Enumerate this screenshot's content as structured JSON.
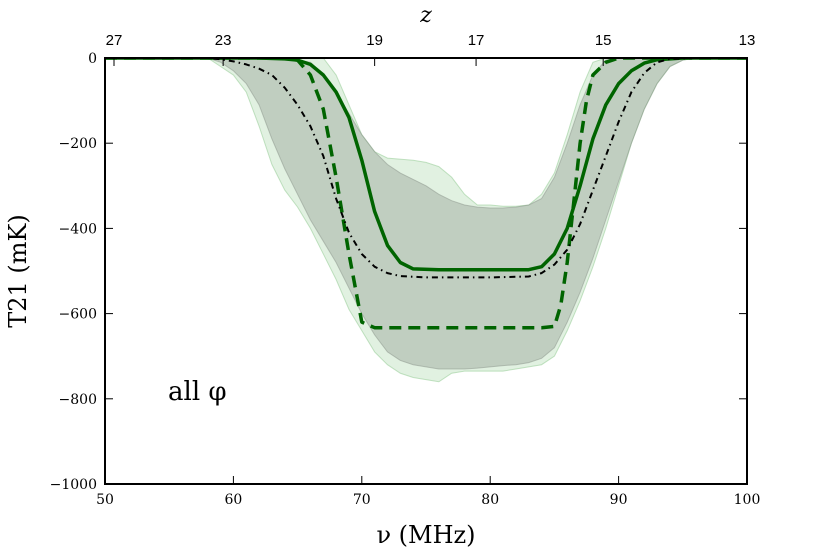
{
  "chart_data": {
    "type": "line",
    "xlabel": "ν (MHz)",
    "ylabel": "T21 (mK)",
    "top_xlabel": "z",
    "xlim": [
      50,
      100
    ],
    "ylim": [
      -1000,
      0
    ],
    "x_ticks": [
      "50",
      "60",
      "70",
      "80",
      "90",
      "100"
    ],
    "y_ticks": [
      "0",
      "−200",
      "−400",
      "−600",
      "−800",
      "−1000"
    ],
    "top_ticks": [
      {
        "label": "27",
        "nu": 50.7
      },
      {
        "label": "23",
        "nu": 59.2
      },
      {
        "label": "19",
        "nu": 71.0
      },
      {
        "label": "17",
        "nu": 78.9
      },
      {
        "label": "15",
        "nu": 88.8
      },
      {
        "label": "13",
        "nu": 101.4
      }
    ],
    "annotation": "all φ",
    "colors": {
      "series": "#006400",
      "dotted": "#000000",
      "band_outer": "#a8d8a8",
      "band_inner": "#9aa59a"
    },
    "bands": [
      {
        "style": "outer",
        "upper": [
          [
            50,
            0
          ],
          [
            58,
            0
          ],
          [
            62,
            0
          ],
          [
            64,
            0
          ],
          [
            66,
            0
          ],
          [
            67,
            0
          ],
          [
            68,
            -40
          ],
          [
            69,
            -110
          ],
          [
            70,
            -180
          ],
          [
            71,
            -220
          ],
          [
            72,
            -235
          ],
          [
            74,
            -240
          ],
          [
            75,
            -245
          ],
          [
            76,
            -255
          ],
          [
            77,
            -280
          ],
          [
            78,
            -320
          ],
          [
            79,
            -345
          ],
          [
            80,
            -345
          ],
          [
            81,
            -348
          ],
          [
            82,
            -348
          ],
          [
            83,
            -345
          ],
          [
            84,
            -320
          ],
          [
            85,
            -270
          ],
          [
            86,
            -180
          ],
          [
            87,
            -80
          ],
          [
            88,
            -10
          ],
          [
            89,
            0
          ],
          [
            100,
            0
          ]
        ],
        "lower": [
          [
            50,
            0
          ],
          [
            58,
            0
          ],
          [
            59,
            -20
          ],
          [
            60,
            -40
          ],
          [
            61,
            -80
          ],
          [
            62,
            -160
          ],
          [
            63,
            -250
          ],
          [
            64,
            -310
          ],
          [
            65,
            -350
          ],
          [
            66,
            -400
          ],
          [
            67,
            -460
          ],
          [
            68,
            -520
          ],
          [
            69,
            -590
          ],
          [
            70,
            -640
          ],
          [
            71,
            -690
          ],
          [
            72,
            -720
          ],
          [
            73,
            -740
          ],
          [
            74,
            -750
          ],
          [
            75,
            -755
          ],
          [
            76,
            -760
          ],
          [
            77,
            -740
          ],
          [
            78,
            -735
          ],
          [
            79,
            -735
          ],
          [
            80,
            -735
          ],
          [
            81,
            -735
          ],
          [
            82,
            -730
          ],
          [
            83,
            -725
          ],
          [
            84,
            -720
          ],
          [
            85,
            -700
          ],
          [
            86,
            -640
          ],
          [
            87,
            -570
          ],
          [
            88,
            -490
          ],
          [
            89,
            -400
          ],
          [
            90,
            -300
          ],
          [
            91,
            -200
          ],
          [
            92,
            -120
          ],
          [
            93,
            -60
          ],
          [
            94,
            -20
          ],
          [
            95,
            -5
          ],
          [
            96,
            0
          ],
          [
            100,
            0
          ]
        ]
      },
      {
        "style": "inner",
        "upper": [
          [
            50,
            0
          ],
          [
            64,
            0
          ],
          [
            66,
            -10
          ],
          [
            67,
            -40
          ],
          [
            68,
            -80
          ],
          [
            69,
            -130
          ],
          [
            70,
            -180
          ],
          [
            71,
            -220
          ],
          [
            72,
            -250
          ],
          [
            73,
            -270
          ],
          [
            74,
            -285
          ],
          [
            75,
            -300
          ],
          [
            76,
            -320
          ],
          [
            77,
            -335
          ],
          [
            78,
            -345
          ],
          [
            79,
            -350
          ],
          [
            80,
            -352
          ],
          [
            81,
            -352
          ],
          [
            82,
            -350
          ],
          [
            83,
            -345
          ],
          [
            84,
            -330
          ],
          [
            85,
            -280
          ],
          [
            86,
            -200
          ],
          [
            87,
            -110
          ],
          [
            88,
            -40
          ],
          [
            89,
            -5
          ],
          [
            90,
            0
          ],
          [
            100,
            0
          ]
        ],
        "lower": [
          [
            50,
            0
          ],
          [
            58,
            0
          ],
          [
            59,
            -10
          ],
          [
            60,
            -30
          ],
          [
            61,
            -60
          ],
          [
            62,
            -110
          ],
          [
            63,
            -190
          ],
          [
            64,
            -260
          ],
          [
            65,
            -320
          ],
          [
            66,
            -380
          ],
          [
            67,
            -430
          ],
          [
            68,
            -480
          ],
          [
            69,
            -540
          ],
          [
            70,
            -600
          ],
          [
            71,
            -650
          ],
          [
            72,
            -690
          ],
          [
            73,
            -710
          ],
          [
            74,
            -720
          ],
          [
            75,
            -725
          ],
          [
            76,
            -730
          ],
          [
            77,
            -730
          ],
          [
            78,
            -730
          ],
          [
            79,
            -728
          ],
          [
            80,
            -725
          ],
          [
            81,
            -722
          ],
          [
            82,
            -720
          ],
          [
            83,
            -715
          ],
          [
            84,
            -705
          ],
          [
            85,
            -680
          ],
          [
            86,
            -620
          ],
          [
            87,
            -550
          ],
          [
            88,
            -470
          ],
          [
            89,
            -380
          ],
          [
            90,
            -290
          ],
          [
            91,
            -200
          ],
          [
            92,
            -120
          ],
          [
            93,
            -60
          ],
          [
            94,
            -20
          ],
          [
            95,
            -5
          ],
          [
            96,
            0
          ],
          [
            100,
            0
          ]
        ]
      }
    ],
    "series": [
      {
        "style": "solid",
        "points": [
          [
            50,
            0
          ],
          [
            62,
            0
          ],
          [
            64,
            -2
          ],
          [
            65,
            -5
          ],
          [
            66,
            -15
          ],
          [
            67,
            -40
          ],
          [
            68,
            -80
          ],
          [
            69,
            -140
          ],
          [
            70,
            -240
          ],
          [
            71,
            -360
          ],
          [
            72,
            -440
          ],
          [
            73,
            -480
          ],
          [
            74,
            -495
          ],
          [
            76,
            -497
          ],
          [
            80,
            -497
          ],
          [
            83,
            -497
          ],
          [
            84,
            -490
          ],
          [
            85,
            -460
          ],
          [
            86,
            -400
          ],
          [
            87,
            -300
          ],
          [
            88,
            -190
          ],
          [
            89,
            -110
          ],
          [
            90,
            -60
          ],
          [
            91,
            -30
          ],
          [
            92,
            -12
          ],
          [
            93,
            -4
          ],
          [
            95,
            0
          ],
          [
            100,
            0
          ]
        ]
      },
      {
        "style": "dashed",
        "points": [
          [
            50,
            0
          ],
          [
            64,
            0
          ],
          [
            65,
            -5
          ],
          [
            66,
            -40
          ],
          [
            67,
            -120
          ],
          [
            68,
            -280
          ],
          [
            69,
            -460
          ],
          [
            70,
            -620
          ],
          [
            71,
            -633
          ],
          [
            75,
            -633
          ],
          [
            80,
            -633
          ],
          [
            84,
            -633
          ],
          [
            85,
            -630
          ],
          [
            85.5,
            -580
          ],
          [
            86,
            -480
          ],
          [
            86.5,
            -340
          ],
          [
            87,
            -200
          ],
          [
            87.5,
            -100
          ],
          [
            88,
            -40
          ],
          [
            89,
            -10
          ],
          [
            90,
            0
          ],
          [
            100,
            0
          ]
        ]
      },
      {
        "style": "dashdot",
        "points": [
          [
            50,
            0
          ],
          [
            58,
            0
          ],
          [
            59,
            -3
          ],
          [
            60,
            -8
          ],
          [
            61,
            -15
          ],
          [
            62,
            -25
          ],
          [
            63,
            -40
          ],
          [
            64,
            -70
          ],
          [
            65,
            -110
          ],
          [
            66,
            -160
          ],
          [
            67,
            -230
          ],
          [
            68,
            -330
          ],
          [
            69,
            -410
          ],
          [
            70,
            -460
          ],
          [
            71,
            -490
          ],
          [
            72,
            -505
          ],
          [
            73,
            -512
          ],
          [
            75,
            -515
          ],
          [
            80,
            -515
          ],
          [
            83,
            -513
          ],
          [
            84,
            -505
          ],
          [
            85,
            -485
          ],
          [
            86,
            -450
          ],
          [
            87,
            -390
          ],
          [
            88,
            -310
          ],
          [
            89,
            -230
          ],
          [
            90,
            -150
          ],
          [
            91,
            -80
          ],
          [
            92,
            -35
          ],
          [
            93,
            -10
          ],
          [
            94,
            -2
          ],
          [
            96,
            0
          ],
          [
            100,
            0
          ]
        ]
      }
    ]
  }
}
